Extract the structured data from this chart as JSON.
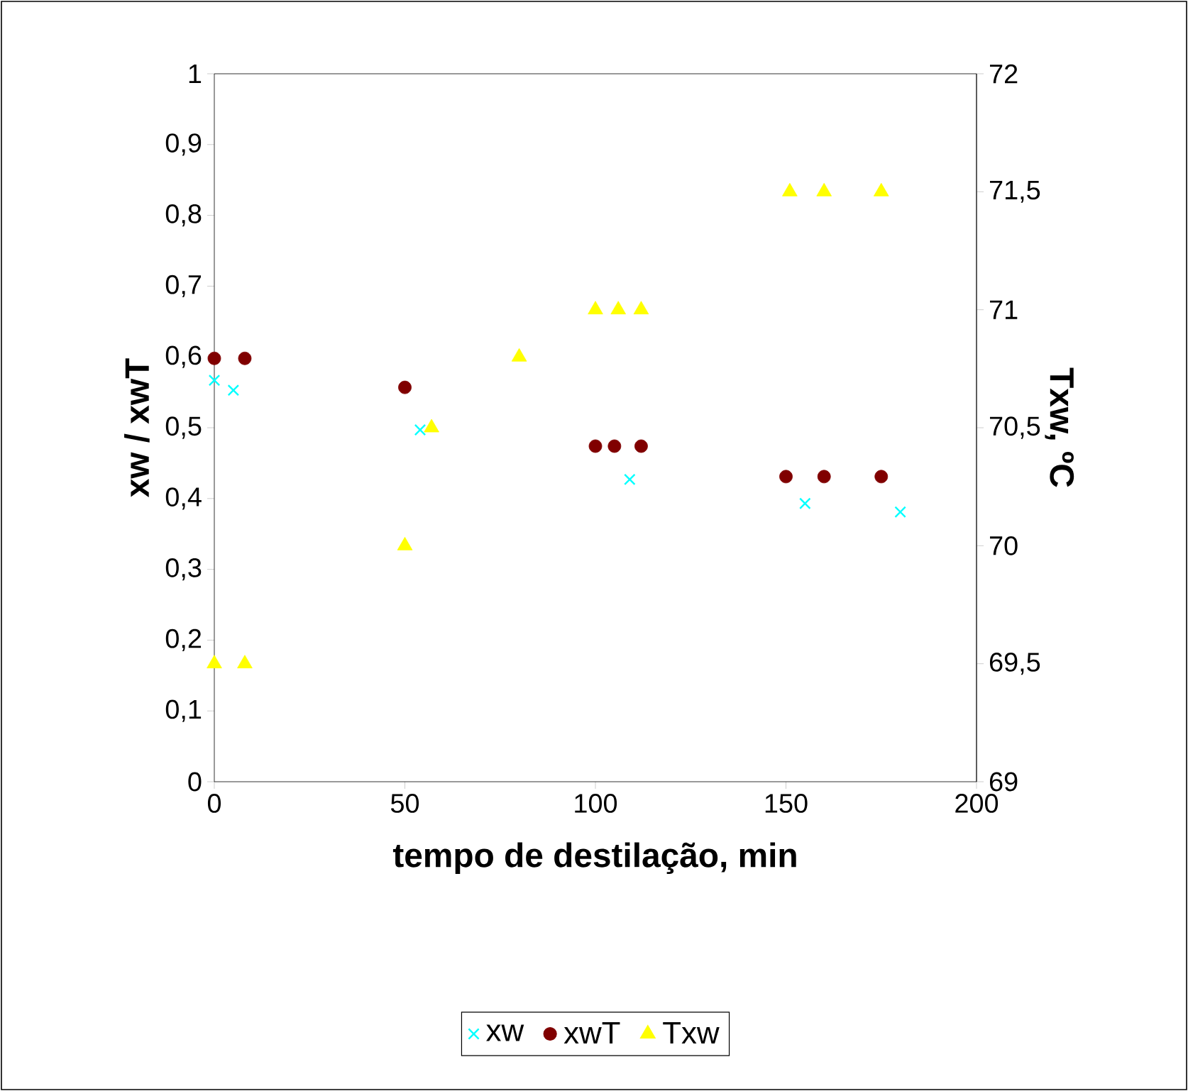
{
  "chart_data": {
    "type": "scatter",
    "xlabel": "tempo de destilação, min",
    "ylabel": "xw / xwT",
    "y2label": "Txw, ºC",
    "xlim": [
      0,
      200
    ],
    "xticks": [
      0,
      50,
      100,
      150,
      200
    ],
    "ylim": [
      0,
      1
    ],
    "yticks": [
      0,
      {
        "value": 0.1,
        "label": "0,1"
      },
      {
        "value": 0.2,
        "label": "0,2"
      },
      {
        "value": 0.3,
        "label": "0,3"
      },
      {
        "value": 0.4,
        "label": "0,4"
      },
      {
        "value": 0.5,
        "label": "0,5"
      },
      {
        "value": 0.6,
        "label": "0,6"
      },
      {
        "value": 0.7,
        "label": "0,7"
      },
      {
        "value": 0.8,
        "label": "0,8"
      },
      {
        "value": 0.9,
        "label": "0,9"
      },
      1
    ],
    "y2lim": [
      69,
      72
    ],
    "y2ticks": [
      69,
      {
        "value": 69.5,
        "label": "69,5"
      },
      70,
      {
        "value": 70.5,
        "label": "70,5"
      },
      71,
      {
        "value": 71.5,
        "label": "71,5"
      },
      72
    ],
    "grid": false,
    "legend": "bottom",
    "series": [
      {
        "name": "xw",
        "color": "#00ffff",
        "marker": "cross",
        "x": [
          0,
          5,
          54,
          109,
          155,
          180
        ],
        "values": [
          0.567,
          0.553,
          0.497,
          0.427,
          0.393,
          0.381
        ]
      },
      {
        "name": "xwT",
        "color": "#800000",
        "marker": "circle",
        "x": [
          0,
          8,
          50,
          100,
          105,
          112,
          150,
          160,
          175
        ],
        "values": [
          0.598,
          0.598,
          0.557,
          0.474,
          0.474,
          0.474,
          0.431,
          0.431,
          0.431
        ]
      },
      {
        "name": "Txw",
        "color": "#ffff00",
        "marker": "triangle",
        "axis": "y2",
        "x": [
          0,
          8,
          50,
          57,
          80,
          100,
          106,
          112,
          151,
          160,
          175
        ],
        "values": [
          69.5,
          69.5,
          70.0,
          70.5,
          70.8,
          71.0,
          71.0,
          71.0,
          71.5,
          71.5,
          71.5
        ]
      }
    ]
  }
}
